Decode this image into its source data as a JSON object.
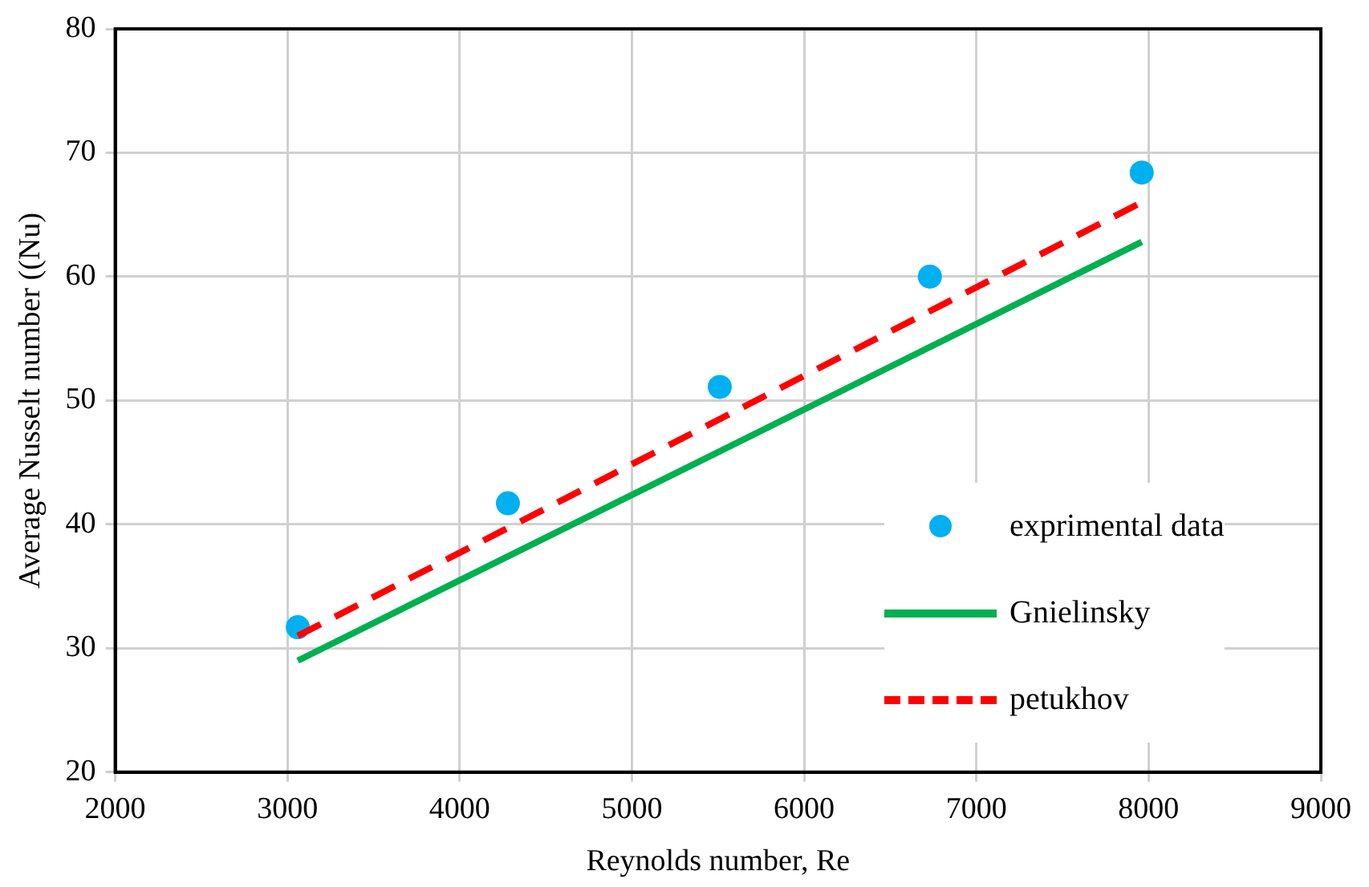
{
  "chart_data": {
    "type": "scatter",
    "xlabel": "Reynolds number, Re",
    "ylabel": "Average Nusselt number ((Nu)",
    "xlim": [
      2000,
      9000
    ],
    "xticks": [
      2000,
      3000,
      4000,
      5000,
      6000,
      7000,
      8000,
      9000
    ],
    "ylim": [
      20,
      80
    ],
    "yticks": [
      20,
      30,
      40,
      50,
      60,
      70,
      80
    ],
    "grid": true,
    "legend": "bottom right",
    "series": [
      {
        "name": "exprimental data",
        "marker": "circle",
        "color": "#00b0f0",
        "x": [
          3060,
          4280,
          5510,
          6730,
          7960
        ],
        "values": [
          31.7,
          41.7,
          51.1,
          60.0,
          68.4
        ]
      },
      {
        "name": "Gnielinsky",
        "type": "line",
        "marker": "none",
        "line_style": "solid",
        "color": "#00b050",
        "x": [
          3060,
          7960
        ],
        "values": [
          29.0,
          62.8
        ]
      },
      {
        "name": "petukhov",
        "type": "line",
        "marker": "none",
        "line_style": "dashed",
        "color": "#ff0000",
        "x": [
          3060,
          7960
        ],
        "values": [
          31.0,
          66.0
        ]
      }
    ]
  }
}
